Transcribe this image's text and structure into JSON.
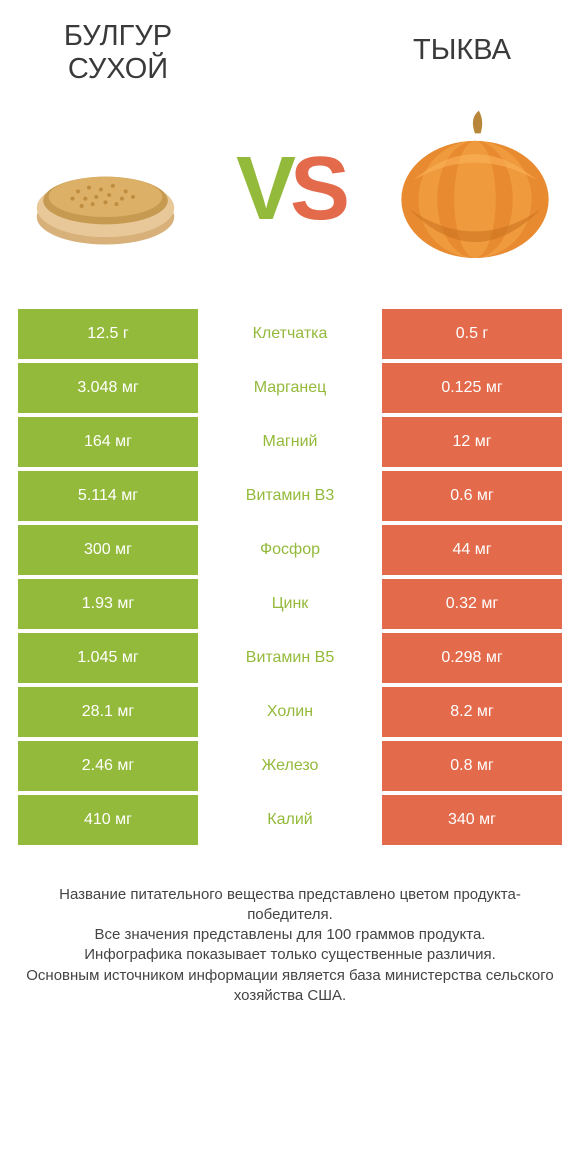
{
  "colors": {
    "left": "#94ba3b",
    "right": "#e36a4a",
    "vs_v": "#94ba3b",
    "vs_s": "#e36a4a",
    "label_winner_left": "#94ba3b",
    "title_text": "#3a3a3a",
    "footer_text": "#444444",
    "background": "#ffffff"
  },
  "typography": {
    "title_fontsize": 29,
    "vs_fontsize": 90,
    "cell_fontsize": 16,
    "footer_fontsize": 15
  },
  "left": {
    "title": "БУЛГУР СУХОЙ"
  },
  "right": {
    "title": "ТЫКВА"
  },
  "vs": {
    "v": "V",
    "s": "S"
  },
  "rows": [
    {
      "left": "12.5 г",
      "label": "Клетчатка",
      "right": "0.5 г",
      "winner": "left"
    },
    {
      "left": "3.048 мг",
      "label": "Марганец",
      "right": "0.125 мг",
      "winner": "left"
    },
    {
      "left": "164 мг",
      "label": "Магний",
      "right": "12 мг",
      "winner": "left"
    },
    {
      "left": "5.114 мг",
      "label": "Витамин B3",
      "right": "0.6 мг",
      "winner": "left"
    },
    {
      "left": "300 мг",
      "label": "Фосфор",
      "right": "44 мг",
      "winner": "left"
    },
    {
      "left": "1.93 мг",
      "label": "Цинк",
      "right": "0.32 мг",
      "winner": "left"
    },
    {
      "left": "1.045 мг",
      "label": "Витамин B5",
      "right": "0.298 мг",
      "winner": "left"
    },
    {
      "left": "28.1 мг",
      "label": "Холин",
      "right": "8.2 мг",
      "winner": "left"
    },
    {
      "left": "2.46 мг",
      "label": "Железо",
      "right": "0.8 мг",
      "winner": "left"
    },
    {
      "left": "410 мг",
      "label": "Калий",
      "right": "340 мг",
      "winner": "left"
    }
  ],
  "footer": {
    "line1": "Название питательного вещества представлено цветом продукта-победителя.",
    "line2": "Все значения представлены для 100 граммов продукта.",
    "line3": "Инфографика показывает только существенные различия.",
    "line4": "Основным источником информации является база министерства сельского хозяйства США."
  }
}
